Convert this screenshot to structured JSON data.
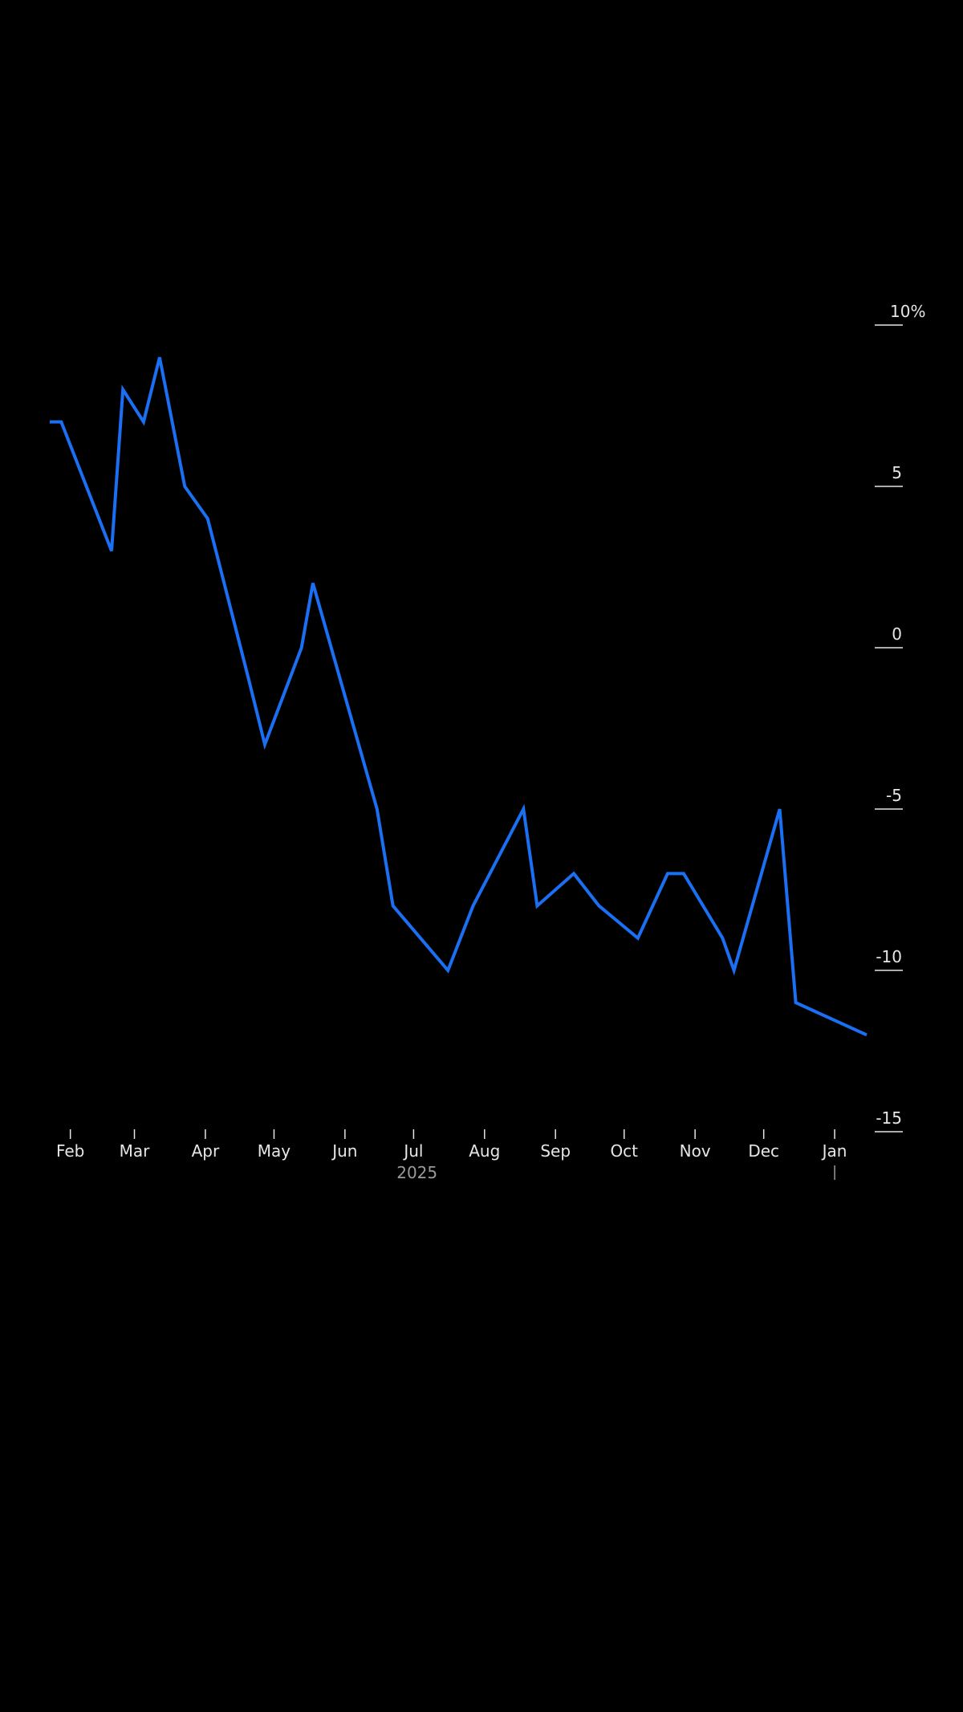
{
  "chart_data": {
    "type": "line",
    "title": "",
    "xlabel": "",
    "ylabel": "",
    "year_label": "2025",
    "y_unit_suffix": "%",
    "ylim": [
      -15,
      10
    ],
    "y_ticks": [
      10,
      5,
      0,
      -5,
      -10,
      -15
    ],
    "x_range": [
      "2025-01-23",
      "2026-01-15"
    ],
    "x_ticks": [
      {
        "date": "2025-02-01",
        "label": "Feb"
      },
      {
        "date": "2025-03-01",
        "label": "Mar"
      },
      {
        "date": "2025-04-01",
        "label": "Apr"
      },
      {
        "date": "2025-05-01",
        "label": "May"
      },
      {
        "date": "2025-06-01",
        "label": "Jun"
      },
      {
        "date": "2025-07-01",
        "label": "Jul"
      },
      {
        "date": "2025-08-01",
        "label": "Aug"
      },
      {
        "date": "2025-09-01",
        "label": "Sep"
      },
      {
        "date": "2025-10-01",
        "label": "Oct"
      },
      {
        "date": "2025-11-01",
        "label": "Nov"
      },
      {
        "date": "2025-12-01",
        "label": "Dec"
      },
      {
        "date": "2026-01-01",
        "label": "Jan"
      }
    ],
    "year_boundary": "2026-01-01",
    "grid": false,
    "legend": "none",
    "color": "#1a6ff2",
    "series": [
      {
        "points": [
          {
            "x": "2025-01-23",
            "y": 7.0
          },
          {
            "x": "2025-01-28",
            "y": 7.0
          },
          {
            "x": "2025-02-19",
            "y": 3.0
          },
          {
            "x": "2025-02-24",
            "y": 8.0
          },
          {
            "x": "2025-03-05",
            "y": 7.0
          },
          {
            "x": "2025-03-12",
            "y": 9.0
          },
          {
            "x": "2025-03-23",
            "y": 5.0
          },
          {
            "x": "2025-04-02",
            "y": 4.0
          },
          {
            "x": "2025-04-20",
            "y": -1.0
          },
          {
            "x": "2025-04-27",
            "y": -3.0
          },
          {
            "x": "2025-05-13",
            "y": 0.0
          },
          {
            "x": "2025-05-18",
            "y": 2.0
          },
          {
            "x": "2025-06-15",
            "y": -5.0
          },
          {
            "x": "2025-06-22",
            "y": -8.0
          },
          {
            "x": "2025-07-16",
            "y": -10.0
          },
          {
            "x": "2025-07-27",
            "y": -8.0
          },
          {
            "x": "2025-08-18",
            "y": -5.0
          },
          {
            "x": "2025-08-24",
            "y": -8.0
          },
          {
            "x": "2025-09-09",
            "y": -7.0
          },
          {
            "x": "2025-09-20",
            "y": -8.0
          },
          {
            "x": "2025-10-07",
            "y": -9.0
          },
          {
            "x": "2025-10-20",
            "y": -7.0
          },
          {
            "x": "2025-10-27",
            "y": -7.0
          },
          {
            "x": "2025-11-13",
            "y": -9.0
          },
          {
            "x": "2025-11-18",
            "y": -10.0
          },
          {
            "x": "2025-12-08",
            "y": -5.0
          },
          {
            "x": "2025-12-15",
            "y": -11.0
          },
          {
            "x": "2026-01-15",
            "y": -12.0
          }
        ]
      }
    ]
  }
}
